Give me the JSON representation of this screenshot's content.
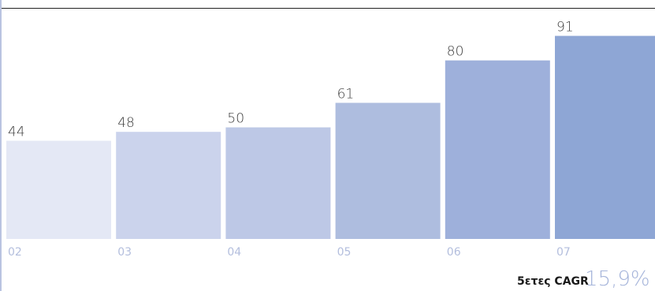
{
  "chart_data": {
    "type": "bar",
    "categories": [
      "02",
      "03",
      "04",
      "05",
      "06",
      "07"
    ],
    "values": [
      44,
      48,
      50,
      61,
      80,
      91
    ],
    "title": "",
    "xlabel": "",
    "ylabel": "",
    "ylim": [
      0,
      100
    ],
    "colors": [
      "#e4e8f5",
      "#cbd3ec",
      "#bdc8e6",
      "#aebddf",
      "#9eb0db",
      "#8ea6d5"
    ],
    "grid": false
  },
  "footer": {
    "cagr_label": "5ετες CAGR",
    "cagr_value": "15,9%"
  },
  "colors": {
    "rule": "#222222",
    "left_edge": "#b9c3e1",
    "tick_text": "#b3bedd",
    "cagr_value": "#a5b4da"
  }
}
